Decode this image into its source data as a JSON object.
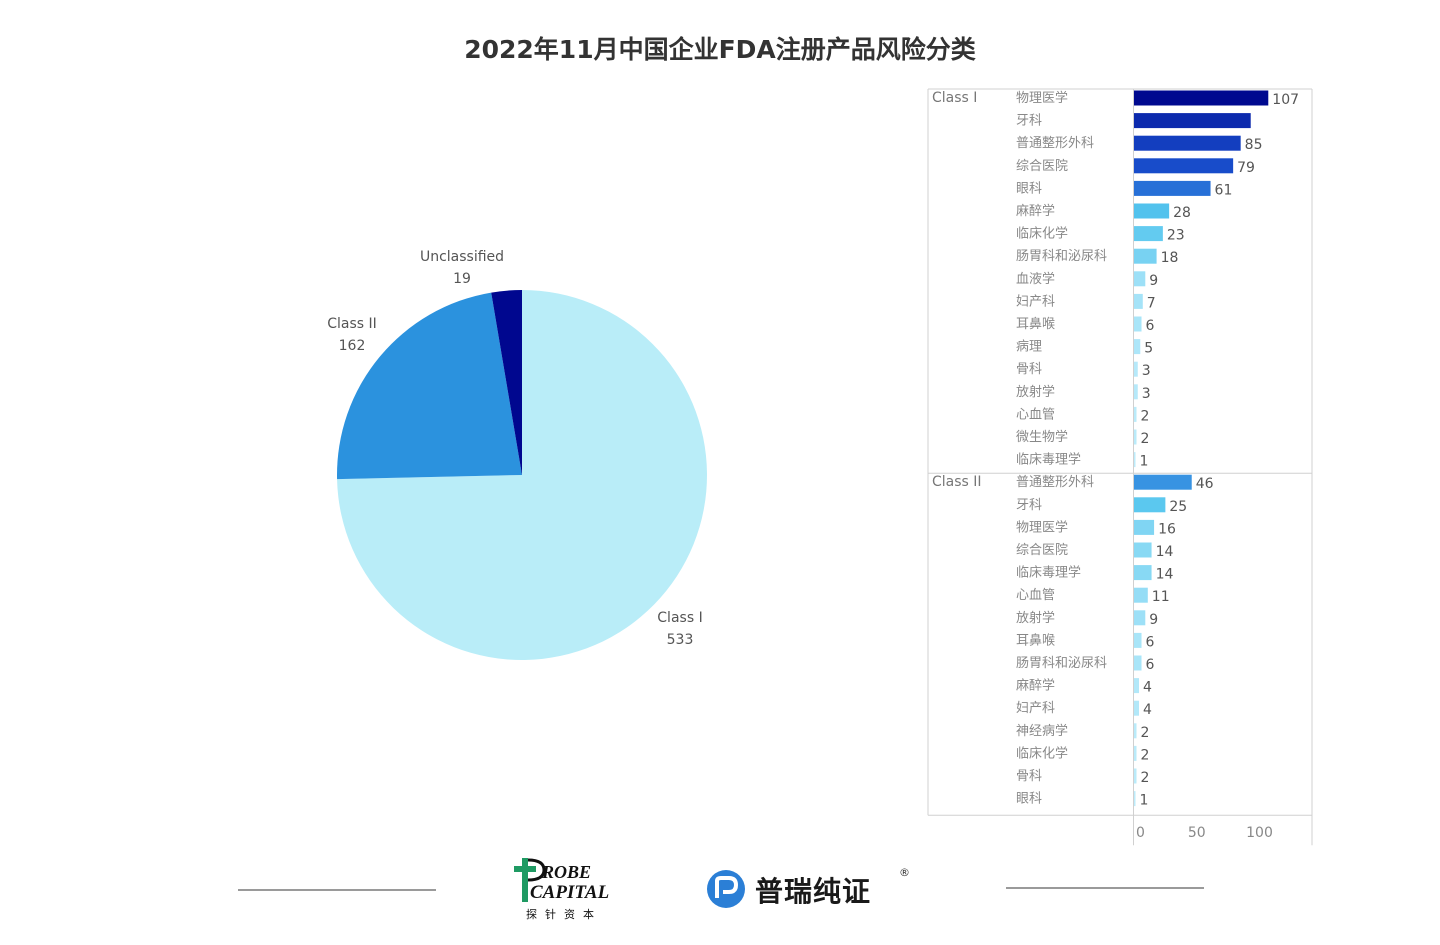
{
  "title": "2022年11月中国企业FDA注册产品风险分类",
  "colors": {
    "pie": {
      "Class I": "#b9edf8",
      "Class II": "#2b92de",
      "Unclassified": "#00078f"
    },
    "bar_scale": [
      "#c2eefb",
      "#54c5ee",
      "#2d7fdd",
      "#1749c9",
      "#00098f"
    ],
    "text": "#555555",
    "axis": "#cccccc"
  },
  "chart_data": [
    {
      "type": "pie",
      "slices": [
        {
          "label": "Class I",
          "value": 533
        },
        {
          "label": "Class II",
          "value": 162
        },
        {
          "label": "Unclassified",
          "value": 19
        }
      ]
    },
    {
      "type": "bar",
      "orientation": "horizontal",
      "xlim": [
        0,
        115
      ],
      "xticks": [
        0,
        50,
        100
      ],
      "groups": [
        {
          "name": "Class I",
          "categories": [
            "物理医学",
            "牙科",
            "普通整形外科",
            "综合医院",
            "眼科",
            "麻醉学",
            "临床化学",
            "肠胃科和泌尿科",
            "血液学",
            "妇产科",
            "耳鼻喉",
            "病理",
            "骨科",
            "放射学",
            "心血管",
            "微生物学",
            "临床毒理学"
          ],
          "values": [
            107,
            93,
            85,
            79,
            61,
            28,
            23,
            18,
            9,
            7,
            6,
            5,
            3,
            3,
            2,
            2,
            1
          ],
          "value_labels": [
            "107",
            "",
            "85",
            "79",
            "61",
            "28",
            "23",
            "18",
            "9",
            "7",
            "6",
            "5",
            "3",
            "3",
            "2",
            "2",
            "1"
          ]
        },
        {
          "name": "Class II",
          "categories": [
            "普通整形外科",
            "牙科",
            "物理医学",
            "综合医院",
            "临床毒理学",
            "心血管",
            "放射学",
            "耳鼻喉",
            "肠胃科和泌尿科",
            "麻醉学",
            "妇产科",
            "神经病学",
            "临床化学",
            "骨科",
            "眼科"
          ],
          "values": [
            46,
            25,
            16,
            14,
            14,
            11,
            9,
            6,
            6,
            4,
            4,
            2,
            2,
            2,
            1
          ],
          "value_labels": [
            "46",
            "25",
            "16",
            "14",
            "14",
            "11",
            "9",
            "6",
            "6",
            "4",
            "4",
            "2",
            "2",
            "2",
            "1"
          ]
        }
      ]
    }
  ],
  "footer": {
    "probe_logo": {
      "line1": "ROBE",
      "line2": "CAPITAL",
      "cn": "探针资本"
    },
    "prui_logo": {
      "name": "普瑞纯证",
      "reg": "®"
    }
  }
}
